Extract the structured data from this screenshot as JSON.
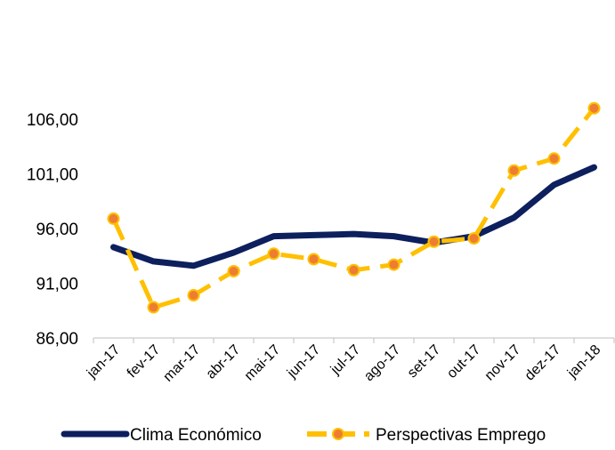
{
  "chart_data": {
    "type": "line",
    "categories": [
      "jan-17",
      "fev-17",
      "mar-17",
      "abr-17",
      "mai-17",
      "jun-17",
      "jul-17",
      "ago-17",
      "set-17",
      "out-17",
      "nov-17",
      "dez-17",
      "jan-18"
    ],
    "y_ticks": [
      "86,00",
      "91,00",
      "96,00",
      "101,00",
      "106,00"
    ],
    "ylim": [
      86,
      106
    ],
    "grid": false,
    "legend_position": "bottom",
    "series": [
      {
        "name": "Clima Económico",
        "color": "#0d1f5c",
        "style": "solid",
        "values": [
          94.3,
          93.0,
          92.6,
          93.8,
          95.3,
          95.4,
          95.5,
          95.3,
          94.7,
          95.3,
          97.0,
          100.0,
          101.6
        ]
      },
      {
        "name": "Perspectivas  Emprego",
        "color": "#ffc000",
        "marker_color": "#ed7d31",
        "style": "dashed",
        "values": [
          96.9,
          88.8,
          89.9,
          92.1,
          93.7,
          93.2,
          92.2,
          92.7,
          94.8,
          95.1,
          101.3,
          102.4,
          107.0
        ]
      }
    ]
  }
}
